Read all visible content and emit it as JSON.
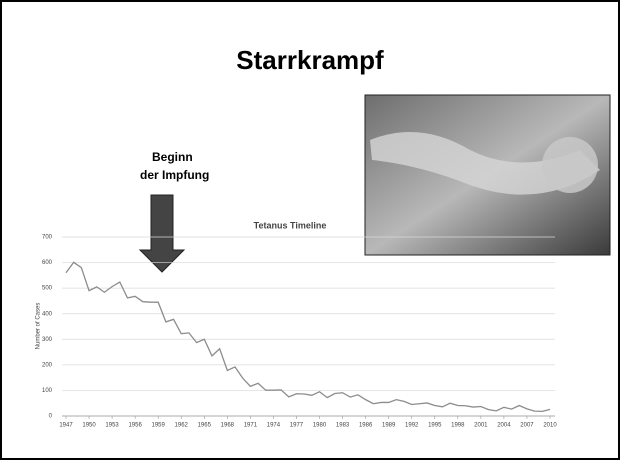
{
  "slide": {
    "title": "Starrkrampf",
    "annotation": [
      "Beginn",
      "der Impfung"
    ]
  },
  "chart_data": {
    "type": "line",
    "title": "Tetanus Timeline",
    "y_label": "Number of Cases",
    "color": "#8c8c8c",
    "grid": true,
    "x": [
      1947,
      1948,
      1949,
      1950,
      1951,
      1952,
      1953,
      1954,
      1955,
      1956,
      1957,
      1958,
      1959,
      1960,
      1961,
      1962,
      1963,
      1964,
      1965,
      1966,
      1967,
      1968,
      1969,
      1970,
      1971,
      1972,
      1973,
      1974,
      1975,
      1976,
      1977,
      1978,
      1979,
      1980,
      1981,
      1982,
      1983,
      1984,
      1985,
      1986,
      1987,
      1988,
      1989,
      1990,
      1991,
      1992,
      1993,
      1994,
      1995,
      1996,
      1997,
      1998,
      1999,
      2000,
      2001,
      2002,
      2003,
      2004,
      2005,
      2006,
      2007,
      2008,
      2009,
      2010
    ],
    "values": [
      560,
      601,
      580,
      490,
      505,
      484,
      506,
      524,
      462,
      468,
      447,
      445,
      445,
      368,
      378,
      322,
      325,
      287,
      300,
      235,
      263,
      178,
      192,
      148,
      116,
      128,
      101,
      101,
      102,
      75,
      87,
      86,
      81,
      95,
      72,
      88,
      91,
      74,
      83,
      64,
      48,
      53,
      53,
      64,
      57,
      45,
      48,
      51,
      41,
      36,
      50,
      41,
      40,
      35,
      37,
      25,
      20,
      34,
      27,
      41,
      28,
      19,
      18,
      26
    ],
    "xlim": [
      1947,
      2010
    ],
    "xticks": [
      1947,
      1950,
      1953,
      1956,
      1959,
      1962,
      1965,
      1968,
      1971,
      1974,
      1977,
      1980,
      1983,
      1986,
      1989,
      1992,
      1995,
      1998,
      2001,
      2004,
      2007,
      2010
    ],
    "ylim": [
      0,
      700
    ],
    "yticks": [
      0,
      100,
      200,
      300,
      400,
      500,
      600,
      700
    ]
  }
}
